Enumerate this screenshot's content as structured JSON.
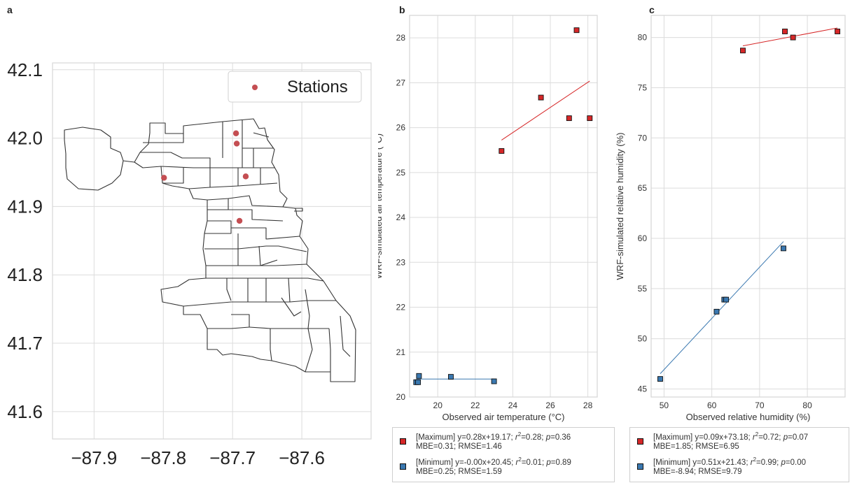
{
  "panels": {
    "a": {
      "letter": "a"
    },
    "b": {
      "letter": "b"
    },
    "c": {
      "letter": "c"
    }
  },
  "chart_data": [
    {
      "panel": "a",
      "type": "scatter",
      "title": "",
      "xlabel": "",
      "ylabel": "",
      "xlim": [
        -87.96,
        -87.5
      ],
      "ylim": [
        41.56,
        42.11
      ],
      "xticks": [
        -87.9,
        -87.8,
        -87.7,
        -87.6
      ],
      "yticks": [
        41.6,
        41.7,
        41.8,
        41.9,
        42.0,
        42.1
      ],
      "xtick_labels": [
        "−87.9",
        "−87.8",
        "−87.7",
        "−87.6"
      ],
      "ytick_labels": [
        "41.6",
        "41.7",
        "41.8",
        "41.9",
        "42.0",
        "42.1"
      ],
      "grid": true,
      "legend_position": "top-right",
      "series": [
        {
          "name": "Stations",
          "color": "#c44e52",
          "points": [
            [
              -87.695,
              42.007
            ],
            [
              -87.694,
              41.992
            ],
            [
              -87.799,
              41.942
            ],
            [
              -87.681,
              41.944
            ],
            [
              -87.69,
              41.879
            ]
          ]
        }
      ]
    },
    {
      "panel": "b",
      "type": "scatter",
      "title": "",
      "xlabel": "Observed air temperature (°C)",
      "ylabel": "WRF-simulated air temperature (°C)",
      "xlim": [
        18.5,
        28.5
      ],
      "ylim": [
        20.0,
        28.5
      ],
      "xticks": [
        20,
        22,
        24,
        26,
        28
      ],
      "yticks": [
        20,
        21,
        22,
        23,
        24,
        25,
        26,
        27,
        28
      ],
      "grid": true,
      "series": [
        {
          "name": "Maximum",
          "color": "#d62728",
          "points": [
            [
              23.4,
              25.48
            ],
            [
              25.5,
              26.67
            ],
            [
              27.0,
              26.21
            ],
            [
              27.4,
              28.17
            ],
            [
              28.1,
              26.21
            ]
          ],
          "fit": {
            "slope": 0.28,
            "intercept": 19.17,
            "x_range": [
              23.4,
              28.1
            ]
          }
        },
        {
          "name": "Minimum",
          "color": "#3a78b0",
          "points": [
            [
              18.85,
              20.33
            ],
            [
              18.95,
              20.33
            ],
            [
              19.0,
              20.47
            ],
            [
              20.7,
              20.45
            ],
            [
              23.0,
              20.35
            ]
          ],
          "fit": {
            "slope": 0.0,
            "intercept": 20.4,
            "x_range": [
              18.85,
              23.0
            ]
          }
        }
      ],
      "legend": {
        "entries": [
          {
            "series": "Maximum",
            "line1_prefix": "[Maximum] y=0.28x+19.17; ",
            "r_letter": "r",
            "r_exp": "2",
            "r_val": "=0.28; ",
            "p_letter": "p",
            "p_val": "=0.36",
            "line2": "MBE=0.31; RMSE=1.46"
          },
          {
            "series": "Minimum",
            "line1_prefix": "[Minimum] y=-0.00x+20.45; ",
            "r_letter": "r",
            "r_exp": "2",
            "r_val": "=0.01; ",
            "p_letter": "p",
            "p_val": "=0.89",
            "line2": "MBE=0.25; RMSE=1.59"
          }
        ]
      }
    },
    {
      "panel": "c",
      "type": "scatter",
      "title": "",
      "xlabel": "Observed relative humidity (%)",
      "ylabel": "WRF-simulated relative humidity (%)",
      "xlim": [
        47.3,
        87.9
      ],
      "ylim": [
        44.2,
        82.2
      ],
      "xticks": [
        50,
        60,
        70,
        80
      ],
      "yticks": [
        45,
        50,
        55,
        60,
        65,
        70,
        75,
        80
      ],
      "grid": true,
      "series": [
        {
          "name": "Maximum",
          "color": "#d62728",
          "points": [
            [
              66.5,
              78.7
            ],
            [
              75.3,
              80.6
            ],
            [
              77.0,
              80.0
            ],
            [
              86.3,
              80.6
            ]
          ],
          "fit": {
            "slope": 0.09,
            "intercept": 73.18,
            "x_range": [
              66.5,
              86.3
            ]
          }
        },
        {
          "name": "Minimum",
          "color": "#3a78b0",
          "points": [
            [
              49.2,
              46.0
            ],
            [
              61.0,
              52.7
            ],
            [
              62.6,
              53.9
            ],
            [
              63.0,
              53.9
            ],
            [
              75.0,
              59.0
            ]
          ],
          "fit": {
            "slope": 0.51,
            "intercept": 21.43,
            "x_range": [
              49.2,
              75.0
            ]
          }
        }
      ],
      "legend": {
        "entries": [
          {
            "series": "Maximum",
            "line1_prefix": "[Maximum] y=0.09x+73.18; ",
            "r_letter": "r",
            "r_exp": "2",
            "r_val": "=0.72; ",
            "p_letter": "p",
            "p_val": "=0.07",
            "line2": "MBE=1.85; RMSE=6.95"
          },
          {
            "series": "Minimum",
            "line1_prefix": "[Minimum] y=0.51x+21.43; ",
            "r_letter": "r",
            "r_exp": "2",
            "r_val": "=0.99; ",
            "p_letter": "p",
            "p_val": "=0.00",
            "line2": "MBE=-8.94; RMSE=9.79"
          }
        ]
      }
    }
  ]
}
